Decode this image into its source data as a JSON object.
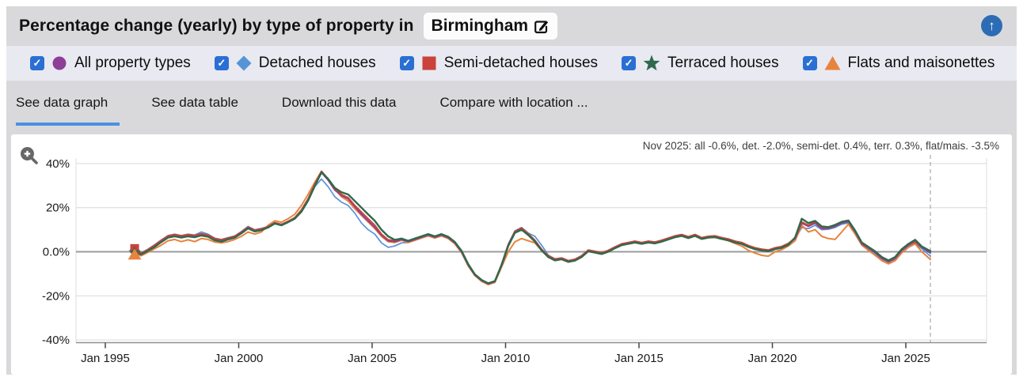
{
  "header": {
    "title": "Percentage change (yearly) by type of property in",
    "location": "Birmingham",
    "edit_icon": "pencil-square",
    "back_to_top_glyph": "↑",
    "back_to_top_color": "#2c6cb5"
  },
  "legend": {
    "check_glyph": "✓",
    "checkbox_color": "#2a6fd4",
    "items": [
      {
        "label": "All property types",
        "marker": "circle",
        "color": "#8e3e97",
        "checked": true
      },
      {
        "label": "Detached houses",
        "marker": "diamond",
        "color": "#5794d7",
        "checked": true
      },
      {
        "label": "Semi-detached houses",
        "marker": "square",
        "color": "#ca423b",
        "checked": true
      },
      {
        "label": "Terraced houses",
        "marker": "star",
        "color": "#2f6a4c",
        "checked": true
      },
      {
        "label": "Flats and maisonettes",
        "marker": "triangle",
        "color": "#e8833e",
        "checked": true
      }
    ]
  },
  "tabs": [
    {
      "label": "See data graph",
      "active": true
    },
    {
      "label": "See data table",
      "active": false
    },
    {
      "label": "Download this data",
      "active": false
    },
    {
      "label": "Compare with location ...",
      "active": false
    }
  ],
  "chart": {
    "annotation": "Nov 2025: all -0.6%, det. -2.0%, semi-det. 0.4%, terr. 0.3%, flat/mais. -3.5%",
    "accent_underline_color": "#4a90e2"
  },
  "chart_data": {
    "type": "line",
    "title": "Percentage change (yearly) by type of property in Birmingham",
    "xlabel": "",
    "ylabel": "Percentage change (yearly)",
    "grid": true,
    "legend_position": "top",
    "xlim": [
      1994.6,
      2028.0
    ],
    "ylim": [
      -45,
      45
    ],
    "marker_line_x": 2025.92,
    "x_ticks": [
      {
        "year": 1995,
        "label": "Jan 1995"
      },
      {
        "year": 2000,
        "label": "Jan 2000"
      },
      {
        "year": 2005,
        "label": "Jan 2005"
      },
      {
        "year": 2010,
        "label": "Jan 2010"
      },
      {
        "year": 2015,
        "label": "Jan 2015"
      },
      {
        "year": 2020,
        "label": "Jan 2020"
      },
      {
        "year": 2025,
        "label": "Jan 2025"
      }
    ],
    "y_ticks": [
      {
        "value": 40,
        "label": "40%"
      },
      {
        "value": 20,
        "label": "20%"
      },
      {
        "value": 0,
        "label": "0.0%"
      },
      {
        "value": -20,
        "label": "-20%"
      },
      {
        "value": -40,
        "label": "-40%"
      }
    ],
    "x": [
      1996.1,
      1996.35,
      1996.6,
      1996.85,
      1997.1,
      1997.35,
      1997.6,
      1997.85,
      1998.1,
      1998.35,
      1998.6,
      1998.85,
      1999.1,
      1999.35,
      1999.6,
      1999.85,
      2000.1,
      2000.35,
      2000.6,
      2000.85,
      2001.1,
      2001.35,
      2001.6,
      2001.85,
      2002.1,
      2002.35,
      2002.6,
      2002.85,
      2003.1,
      2003.35,
      2003.6,
      2003.85,
      2004.1,
      2004.35,
      2004.6,
      2004.85,
      2005.1,
      2005.35,
      2005.6,
      2005.85,
      2006.1,
      2006.35,
      2006.6,
      2006.85,
      2007.1,
      2007.35,
      2007.6,
      2007.85,
      2008.1,
      2008.35,
      2008.6,
      2008.85,
      2009.1,
      2009.35,
      2009.6,
      2009.85,
      2010.1,
      2010.35,
      2010.6,
      2010.85,
      2011.1,
      2011.35,
      2011.6,
      2011.85,
      2012.1,
      2012.35,
      2012.6,
      2012.85,
      2013.1,
      2013.35,
      2013.6,
      2013.85,
      2014.1,
      2014.35,
      2014.6,
      2014.85,
      2015.1,
      2015.35,
      2015.6,
      2015.85,
      2016.1,
      2016.35,
      2016.6,
      2016.85,
      2017.1,
      2017.35,
      2017.6,
      2017.85,
      2018.1,
      2018.35,
      2018.6,
      2018.85,
      2019.1,
      2019.35,
      2019.6,
      2019.85,
      2020.1,
      2020.35,
      2020.6,
      2020.85,
      2021.1,
      2021.35,
      2021.6,
      2021.85,
      2022.1,
      2022.35,
      2022.6,
      2022.85,
      2023.1,
      2023.35,
      2023.6,
      2023.85,
      2024.1,
      2024.35,
      2024.6,
      2024.85,
      2025.1,
      2025.35,
      2025.6,
      2025.92
    ],
    "series": [
      {
        "name": "All property types",
        "color": "#8e3e97",
        "marker": "circle",
        "width": 2,
        "z": 3,
        "final_label": "all -0.6%",
        "values": [
          0.3,
          -0.8,
          0.8,
          2.8,
          5,
          7,
          7.6,
          7,
          7.6,
          7.2,
          8,
          7.4,
          5.8,
          5.2,
          6,
          6.8,
          8.8,
          11,
          9.6,
          10.2,
          11.2,
          13,
          12.2,
          13.6,
          15.2,
          18.5,
          23.5,
          30,
          36,
          32.5,
          28,
          25.5,
          24,
          20.5,
          17,
          14,
          11,
          7.5,
          5,
          4.6,
          5.6,
          4.6,
          5.6,
          6.6,
          7.6,
          6.6,
          7.6,
          6.4,
          4,
          0,
          -6,
          -10.5,
          -13,
          -14.5,
          -13.5,
          -6,
          3,
          9,
          10.5,
          8,
          5,
          1,
          -2,
          -3.5,
          -3,
          -4.2,
          -3.6,
          -2,
          0.6,
          0,
          -0.6,
          0.4,
          2,
          3.4,
          4,
          4.6,
          4,
          4.6,
          4.2,
          5,
          6,
          7,
          7.6,
          6.6,
          7.6,
          6.2,
          6.8,
          7,
          6.2,
          5.6,
          4.6,
          4,
          2.6,
          1.6,
          1,
          0.6,
          1.6,
          2.2,
          3.6,
          6,
          13,
          11.5,
          13,
          10.5,
          10.6,
          11.5,
          13,
          13.6,
          9,
          3.6,
          1.6,
          -0.4,
          -3,
          -4.5,
          -3,
          0.6,
          3,
          4.4,
          2,
          -0.6
        ]
      },
      {
        "name": "Detached houses",
        "color": "#5794d7",
        "marker": "diamond",
        "width": 1.7,
        "z": 1,
        "final_label": "det. -2.0%",
        "values": [
          0.8,
          -0.4,
          1.2,
          3.2,
          5.4,
          7.4,
          8,
          7.4,
          8,
          7.6,
          9,
          8,
          6.2,
          5.6,
          6.4,
          7.2,
          9.2,
          11.5,
          10,
          10.6,
          11.4,
          13.2,
          12.4,
          13.8,
          15,
          18,
          23,
          29.5,
          33,
          29.5,
          25,
          22.5,
          21,
          17.5,
          13,
          10,
          8,
          4,
          2,
          2.6,
          4,
          4.2,
          5.2,
          6.4,
          7.4,
          6.4,
          7.4,
          6.2,
          3.6,
          -0.4,
          -6.4,
          -10.8,
          -13.2,
          -14.7,
          -13.7,
          -5.5,
          3.5,
          9.5,
          11,
          8.5,
          7,
          3,
          -1.5,
          -3.2,
          -2.8,
          -4,
          -3.4,
          -1.8,
          0.8,
          0.2,
          -0.4,
          0.6,
          2.2,
          3.6,
          4.2,
          4.8,
          4.2,
          4.8,
          4.4,
          5.2,
          6.2,
          7.2,
          7.8,
          6.8,
          7.8,
          6.4,
          7,
          7.2,
          6.4,
          5.8,
          4.8,
          4.2,
          2.8,
          1.8,
          1.2,
          0.8,
          1.8,
          2.4,
          3.8,
          5.8,
          11,
          10.5,
          12,
          10,
          10.2,
          11,
          12.5,
          13,
          8.5,
          3.2,
          1.2,
          -0.8,
          -3.4,
          -4.8,
          -3.4,
          0.2,
          2.4,
          3.6,
          1.4,
          -2
        ]
      },
      {
        "name": "Semi-detached houses",
        "color": "#ca423b",
        "marker": "square",
        "width": 2,
        "z": 4,
        "final_label": "semi-det. 0.4%",
        "values": [
          1.5,
          -0.6,
          1,
          3,
          5.2,
          7.2,
          7.8,
          7.2,
          7.8,
          7.4,
          8.2,
          7.6,
          6,
          5.4,
          6.2,
          7,
          9,
          11.2,
          9.8,
          10.4,
          11.4,
          13.2,
          12.4,
          13.8,
          15.5,
          19,
          24,
          30.5,
          36.5,
          33,
          28.5,
          26,
          24.5,
          21,
          18,
          15,
          12,
          8,
          5.4,
          5,
          6,
          5,
          6,
          7,
          8,
          7,
          8,
          6.8,
          4.4,
          0.4,
          -5.6,
          -10.2,
          -12.8,
          -14.3,
          -13.3,
          -5.8,
          3.2,
          9.2,
          10.8,
          8.2,
          5.2,
          1.2,
          -1.8,
          -3.3,
          -2.8,
          -4,
          -3.4,
          -1.8,
          0.8,
          0.2,
          -0.4,
          0.6,
          2.2,
          3.6,
          4.2,
          4.8,
          4.2,
          4.8,
          4.4,
          5.2,
          6.2,
          7.2,
          7.8,
          6.8,
          7.8,
          6.4,
          7,
          7.2,
          6.4,
          5.8,
          4.8,
          4.2,
          2.8,
          1.8,
          1.2,
          0.8,
          1.8,
          2.4,
          3.8,
          6.2,
          13.5,
          12,
          13.5,
          11,
          11,
          12,
          13.4,
          14,
          9.4,
          4,
          2,
          0,
          -2.6,
          -4.1,
          -2.6,
          1,
          3.4,
          4.6,
          2.2,
          0.4
        ]
      },
      {
        "name": "Terraced houses",
        "color": "#2f6a4c",
        "marker": "star",
        "width": 2.4,
        "z": 5,
        "final_label": "terr. 0.3%",
        "values": [
          -0.3,
          -1.2,
          0.4,
          2.2,
          4.4,
          6.4,
          7,
          6.4,
          7,
          6.6,
          7.4,
          6.8,
          5.2,
          4.6,
          5.6,
          6.4,
          8.4,
          10.6,
          9.2,
          9.8,
          11,
          12.8,
          12,
          13.4,
          15,
          18.2,
          23.2,
          29.8,
          36,
          33,
          29,
          27,
          26,
          23,
          20,
          17,
          14,
          10,
          7,
          5.4,
          6,
          5,
          6,
          7,
          8,
          7,
          8,
          6.8,
          4.4,
          0.4,
          -5.6,
          -10.2,
          -12.8,
          -14.3,
          -13.3,
          -6.2,
          2.6,
          8.6,
          10,
          7.6,
          4.6,
          0.6,
          -2.4,
          -3.9,
          -3.4,
          -4.6,
          -4,
          -2.4,
          0.2,
          -0.4,
          -1,
          0,
          1.6,
          3,
          3.6,
          4.2,
          3.6,
          4.2,
          3.8,
          4.6,
          5.6,
          6.6,
          7.2,
          6.2,
          7.2,
          5.8,
          6.4,
          6.6,
          5.8,
          5.2,
          4.2,
          3.6,
          2.2,
          1.2,
          0.6,
          0.2,
          1.2,
          1.8,
          3.2,
          6.4,
          15,
          13,
          14,
          11.5,
          11.2,
          12.2,
          13.6,
          14.2,
          9.6,
          4.2,
          2.2,
          0.2,
          -2.4,
          -3.9,
          -2.4,
          1.2,
          3.6,
          5.4,
          2.4,
          0.3
        ]
      },
      {
        "name": "Flats and maisonettes",
        "color": "#e8833e",
        "marker": "triangle",
        "width": 2,
        "z": 2,
        "final_label": "flat/mais. -3.5%",
        "values": [
          -1.2,
          -1.8,
          -0.2,
          1.4,
          3,
          5,
          5.6,
          4.6,
          5.4,
          4.6,
          6,
          5.6,
          4.4,
          4,
          4.6,
          5.6,
          7,
          9,
          8,
          9,
          12,
          14,
          13.4,
          15,
          17,
          21,
          26,
          31.5,
          36.5,
          33,
          28.5,
          25,
          23,
          19.5,
          16.5,
          13.5,
          10.5,
          7,
          4.6,
          4.2,
          5.2,
          4.2,
          5.2,
          6.2,
          7.2,
          6.2,
          7.2,
          6,
          3.6,
          -0.4,
          -6.4,
          -10.8,
          -13.4,
          -14.9,
          -13.9,
          -7,
          0,
          4.5,
          6,
          5,
          4,
          0.6,
          -2.4,
          -3.9,
          -3.4,
          -4.6,
          -4,
          -2.4,
          0.2,
          -0.4,
          -1,
          0,
          1.6,
          3,
          3.6,
          4.2,
          3.6,
          4.2,
          3.8,
          4.6,
          5.6,
          6.6,
          7.2,
          6.2,
          7.2,
          5.8,
          6.4,
          6.6,
          5.8,
          5,
          3.8,
          2.6,
          0.6,
          -0.6,
          -1.6,
          -2,
          0,
          1,
          2.6,
          5,
          12,
          9,
          10,
          7,
          6,
          5.6,
          9,
          12.5,
          8,
          3,
          0.6,
          -1.6,
          -4,
          -5.5,
          -4,
          -0.5,
          2,
          3.6,
          0,
          -3.5
        ]
      }
    ]
  }
}
